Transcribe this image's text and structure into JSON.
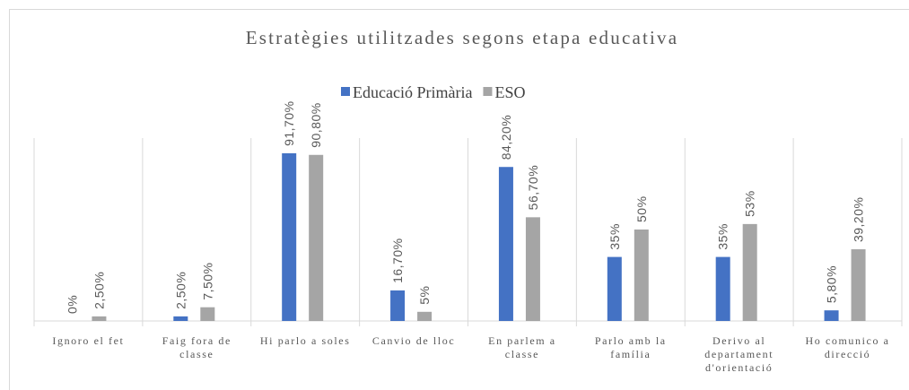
{
  "chart_data": {
    "type": "bar",
    "title": "Estratègies utilitzades segons etapa educativa",
    "categories": [
      "Ignoro el fet",
      "Faig fora de classe",
      "Hi parlo a soles",
      "Canvio de lloc",
      "En parlem a classe",
      "Parlo amb la família",
      "Derivo al departament d'orientació",
      "Ho comunico a direcció"
    ],
    "series": [
      {
        "name": "Educació Primària",
        "color": "#4472c4",
        "values": [
          0,
          2.5,
          91.7,
          16.7,
          84.2,
          35,
          35,
          5.8
        ],
        "value_labels": [
          "0%",
          "2,50%",
          "91,70%",
          "16,70%",
          "84,20%",
          "35%",
          "35%",
          "5,80%"
        ]
      },
      {
        "name": "ESO",
        "color": "#a5a5a5",
        "values": [
          2.5,
          7.5,
          90.8,
          5,
          56.7,
          50,
          53,
          39.2
        ],
        "value_labels": [
          "2,50%",
          "7,50%",
          "90,80%",
          "5%",
          "56,70%",
          "50%",
          "53%",
          "39,20%"
        ]
      }
    ],
    "ylim": [
      0,
      100
    ]
  }
}
